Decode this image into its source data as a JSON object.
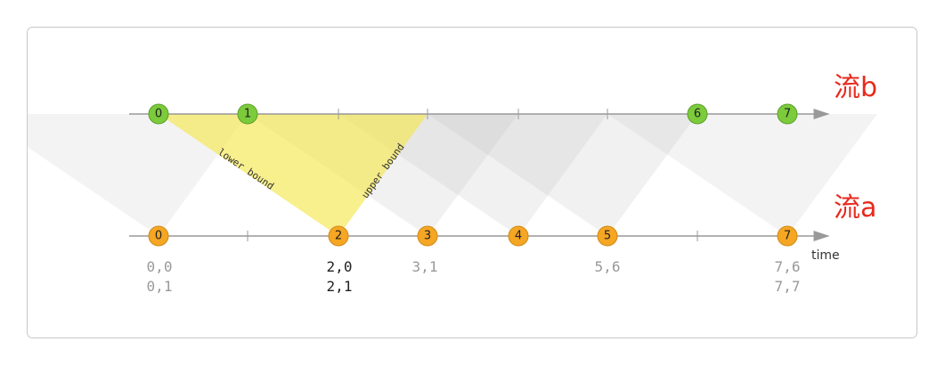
{
  "streams": [
    {
      "label": "流b",
      "nodes": [
        "0",
        "1",
        "6",
        "7"
      ]
    },
    {
      "label": "流a",
      "nodes": [
        "0",
        "2",
        "3",
        "4",
        "5",
        "7"
      ]
    }
  ],
  "axis_label": "time",
  "annotations": {
    "lower": "lower bound",
    "upper": "upper bound"
  },
  "results": [
    {
      "lines": [
        "0,0",
        "0,1"
      ]
    },
    {
      "lines": [
        "2,0",
        "2,1"
      ]
    },
    {
      "lines": [
        "3,1"
      ]
    },
    {
      "lines": [
        "5,6"
      ]
    },
    {
      "lines": [
        "7,6",
        "7,7"
      ]
    }
  ]
}
